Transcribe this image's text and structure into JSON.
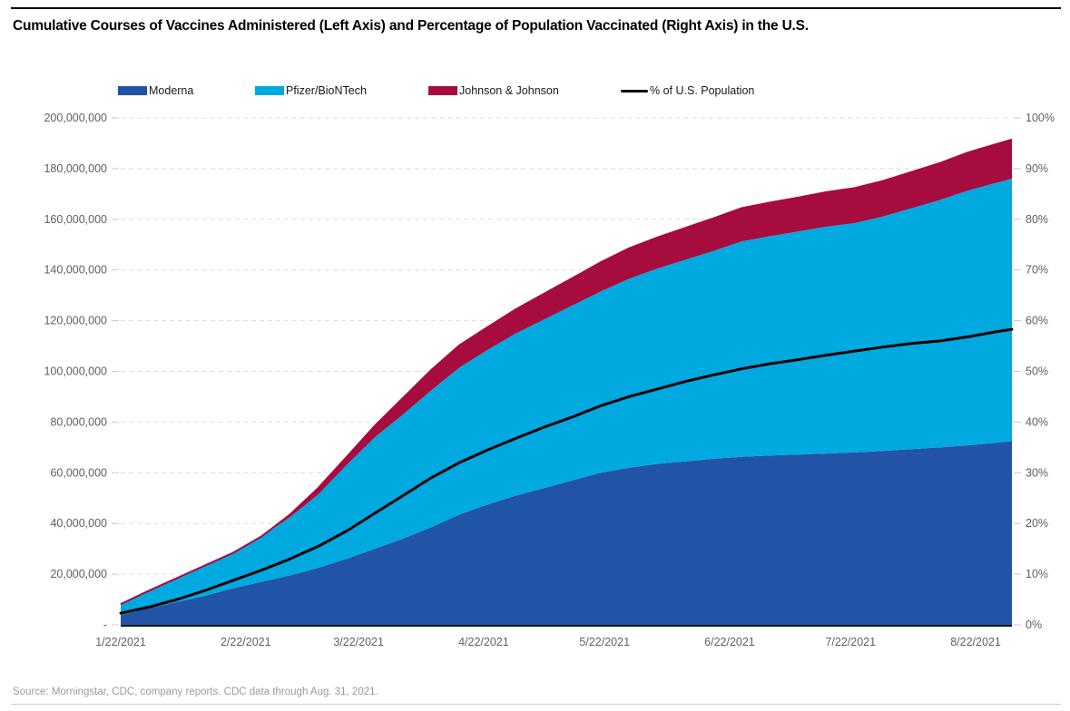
{
  "page": {
    "title": "Cumulative Courses of Vaccines Administered (Left Axis) and Percentage of Population Vaccinated (Right Axis) in the U.S.",
    "source": "Source: Morningstar, CDC, company reports. CDC data through Aug. 31, 2021."
  },
  "colors": {
    "moderna": "#2154A6",
    "pfizer": "#00A9E0",
    "jnj": "#A60C3D",
    "population_line": "#000000",
    "gridline": "#DCDCDC",
    "axis_line": "#111111",
    "tick": "#C8C8C8",
    "axis_label": "#606060"
  },
  "legend": {
    "items": [
      {
        "label": "Moderna",
        "color": "#2154A6",
        "type": "box"
      },
      {
        "label": "Pfizer/BioNTech",
        "color": "#00A9E0",
        "type": "box"
      },
      {
        "label": "Johnson & Johnson",
        "color": "#A60C3D",
        "type": "box"
      },
      {
        "label": "% of U.S. Population",
        "color": "#000000",
        "type": "line"
      }
    ]
  },
  "chart_data": {
    "type": "area",
    "stacked": true,
    "title": "Cumulative Courses of Vaccines Administered (Left Axis) and Percentage of Population Vaccinated (Right Axis) in the U.S.",
    "values_unit": "millions of courses",
    "x_unit": "days since 1/22/2021",
    "grid": "dashed horizontal gridlines every 20,000,000 courses / 10%",
    "legend_position": "top",
    "dates": [
      "1/22/2021",
      "1/29/2021",
      "2/5/2021",
      "2/12/2021",
      "2/19/2021",
      "2/26/2021",
      "3/5/2021",
      "3/12/2021",
      "3/19/2021",
      "3/26/2021",
      "4/2/2021",
      "4/9/2021",
      "4/16/2021",
      "4/23/2021",
      "4/30/2021",
      "5/7/2021",
      "5/14/2021",
      "5/21/2021",
      "5/28/2021",
      "6/4/2021",
      "6/11/2021",
      "6/18/2021",
      "6/25/2021",
      "7/2/2021",
      "7/9/2021",
      "7/16/2021",
      "7/23/2021",
      "7/30/2021",
      "8/6/2021",
      "8/13/2021",
      "8/20/2021",
      "8/27/2021",
      "8/31/2021"
    ],
    "x": [
      0,
      7,
      14,
      21,
      28,
      35,
      42,
      49,
      56,
      63,
      70,
      77,
      84,
      91,
      98,
      105,
      112,
      119,
      126,
      133,
      140,
      147,
      154,
      161,
      168,
      175,
      182,
      189,
      196,
      203,
      210,
      217,
      221
    ],
    "series": [
      {
        "name": "Moderna",
        "axis": "left",
        "color": "#2154A6",
        "values": [
          3.9,
          6.5,
          9.0,
          11.5,
          14.5,
          17.0,
          19.5,
          22.5,
          26.0,
          30.0,
          34.0,
          38.5,
          43.5,
          47.5,
          51.0,
          54.0,
          57.0,
          60.0,
          62.0,
          63.5,
          64.5,
          65.5,
          66.3,
          66.8,
          67.2,
          67.6,
          68.0,
          68.6,
          69.3,
          70.0,
          70.8,
          71.8,
          72.5
        ]
      },
      {
        "name": "Pfizer/BioNTech",
        "axis": "left",
        "color": "#00A9E0",
        "values": [
          4.3,
          7.0,
          9.5,
          12.0,
          14.0,
          18.0,
          23.0,
          29.0,
          37.0,
          44.0,
          49.0,
          54.0,
          58.0,
          61.0,
          64.0,
          66.5,
          69.0,
          71.5,
          74.5,
          77.0,
          79.5,
          82.0,
          85.0,
          86.5,
          88.0,
          89.5,
          90.5,
          92.5,
          95.0,
          97.5,
          100.5,
          102.5,
          103.5
        ]
      },
      {
        "name": "Johnson & Johnson",
        "axis": "left",
        "color": "#A60C3D",
        "values": [
          0,
          0,
          0,
          0,
          0,
          0,
          1.0,
          2.5,
          3.2,
          4.5,
          6.5,
          8.0,
          8.8,
          9.0,
          9.5,
          10.2,
          10.8,
          11.5,
          12.0,
          12.3,
          12.6,
          12.9,
          13.1,
          13.3,
          13.4,
          13.6,
          13.8,
          14.0,
          14.3,
          14.6,
          15.0,
          15.3,
          15.5
        ]
      },
      {
        "name": "% of U.S. Population",
        "type": "line",
        "axis": "right",
        "color": "#000000",
        "values": [
          2.3,
          3.5,
          5.0,
          6.8,
          8.8,
          10.8,
          13.0,
          15.5,
          18.5,
          22.0,
          25.5,
          29.0,
          32.0,
          34.5,
          36.8,
          39.0,
          41.0,
          43.2,
          45.0,
          46.5,
          48.0,
          49.3,
          50.5,
          51.5,
          52.3,
          53.2,
          54.0,
          54.8,
          55.5,
          56.0,
          56.8,
          57.8,
          58.3
        ]
      }
    ],
    "left_axis": {
      "min": 0,
      "max": 200000000,
      "step": 20000000,
      "tick_labels": [
        "-",
        "20,000,000",
        "40,000,000",
        "60,000,000",
        "80,000,000",
        "100,000,000",
        "120,000,000",
        "140,000,000",
        "160,000,000",
        "180,000,000",
        "200,000,000"
      ]
    },
    "right_axis": {
      "min": 0,
      "max": 100,
      "step": 10,
      "tick_labels": [
        "0%",
        "10%",
        "20%",
        "30%",
        "40%",
        "50%",
        "60%",
        "70%",
        "80%",
        "90%",
        "100%"
      ]
    },
    "x_axis": {
      "tick_days": [
        0,
        31,
        59,
        90,
        120,
        151,
        181,
        212
      ],
      "tick_labels": [
        "1/22/2021",
        "2/22/2021",
        "3/22/2021",
        "4/22/2021",
        "5/22/2021",
        "6/22/2021",
        "7/22/2021",
        "8/22/2021"
      ]
    }
  }
}
